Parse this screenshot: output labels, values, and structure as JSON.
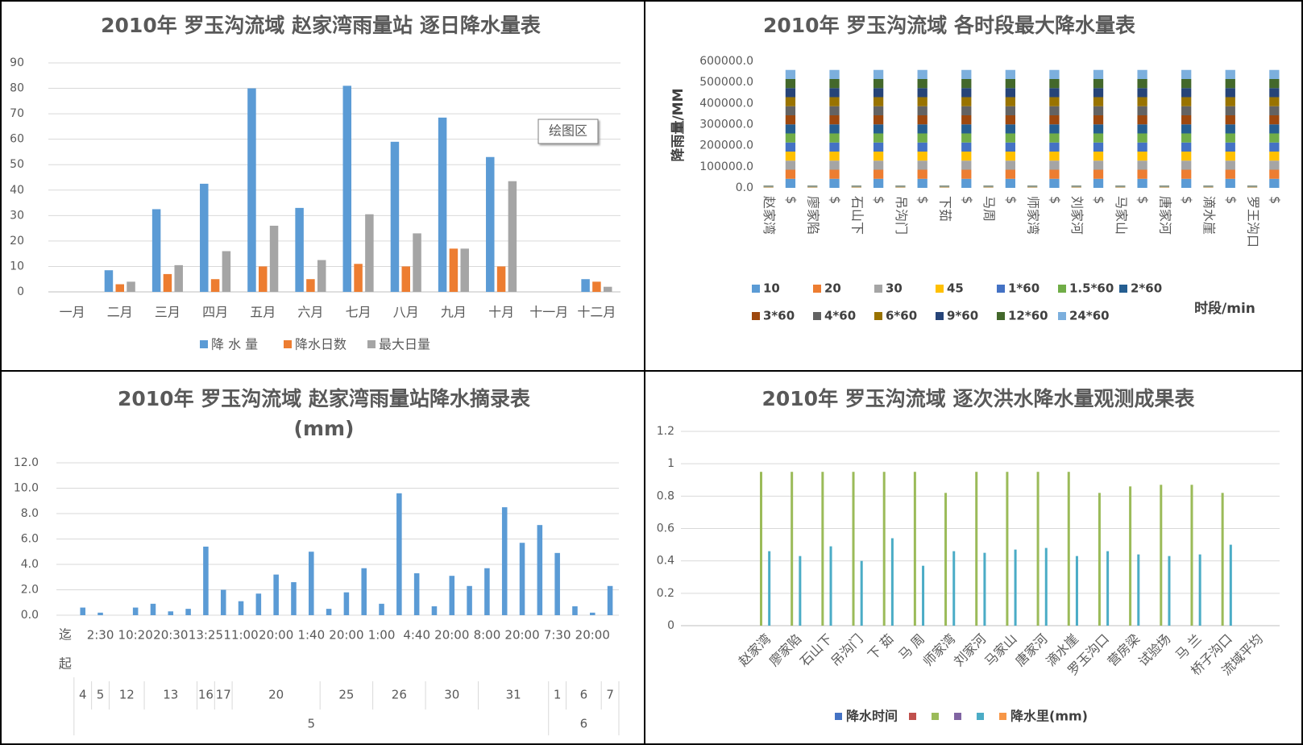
{
  "chart_data": [
    {
      "type": "bar",
      "title": "2010年 罗玉沟流域 赵家湾雨量站 逐日降水量表",
      "categories": [
        "一月",
        "二月",
        "三月",
        "四月",
        "五月",
        "六月",
        "七月",
        "八月",
        "九月",
        "十月",
        "十一月",
        "十二月"
      ],
      "series": [
        {
          "name": "降 水 量",
          "color": "#5b9bd5",
          "values": [
            0,
            8.5,
            32.5,
            42.5,
            80,
            33,
            81,
            59,
            68.5,
            53,
            0,
            5
          ]
        },
        {
          "name": "降水日数",
          "color": "#ed7d31",
          "values": [
            0,
            3,
            7,
            5,
            10,
            5,
            11,
            10,
            17,
            10,
            0,
            4
          ]
        },
        {
          "name": "最大日量",
          "color": "#a5a5a5",
          "values": [
            0,
            4,
            10.5,
            16,
            26,
            12.5,
            30.5,
            23,
            17,
            43.5,
            0,
            2
          ]
        }
      ],
      "ylim": [
        0,
        90
      ],
      "yticks": [
        0,
        10,
        20,
        30,
        40,
        50,
        60,
        70,
        80,
        90
      ],
      "grid": true,
      "legend": "bottom",
      "annotation": "绘图区"
    },
    {
      "type": "stacked_bar",
      "title": "2010年 罗玉沟流域 各时段最大降水量表",
      "y_label": "降雨量/MM",
      "x_label": "时段/min",
      "categories": [
        "赵家湾",
        "$",
        "廖家陷",
        "$",
        "石山下",
        "$",
        "吊沟门",
        "$",
        "下茹",
        "$",
        "马周",
        "$",
        "师家湾",
        "$",
        "刘家河",
        "$",
        "马家山",
        "$",
        "唐家河",
        "$",
        "滴水崖",
        "$",
        "罗王沟口",
        "$"
      ],
      "series": [
        {
          "name": "10",
          "color": "#5b9bd5",
          "values": [
            900,
            43000,
            900,
            43000,
            900,
            43000,
            900,
            43000,
            900,
            43000,
            900,
            43000,
            900,
            43000,
            900,
            43000,
            900,
            43000,
            900,
            43000,
            900,
            43000,
            900,
            43000
          ]
        },
        {
          "name": "20",
          "color": "#ed7d31",
          "values": [
            900,
            43000,
            900,
            43000,
            900,
            43000,
            900,
            43000,
            900,
            43000,
            900,
            43000,
            900,
            43000,
            900,
            43000,
            900,
            43000,
            900,
            43000,
            900,
            43000,
            900,
            43000
          ]
        },
        {
          "name": "30",
          "color": "#a5a5a5",
          "values": [
            900,
            43000,
            900,
            43000,
            900,
            43000,
            900,
            43000,
            900,
            43000,
            900,
            43000,
            900,
            43000,
            900,
            43000,
            900,
            43000,
            900,
            43000,
            900,
            43000,
            900,
            43000
          ]
        },
        {
          "name": "45",
          "color": "#ffc000",
          "values": [
            900,
            43000,
            900,
            43000,
            900,
            43000,
            900,
            43000,
            900,
            43000,
            900,
            43000,
            900,
            43000,
            900,
            43000,
            900,
            43000,
            900,
            43000,
            900,
            43000,
            900,
            43000
          ]
        },
        {
          "name": "1*60",
          "color": "#4472c4",
          "values": [
            900,
            43000,
            900,
            43000,
            900,
            43000,
            900,
            43000,
            900,
            43000,
            900,
            43000,
            900,
            43000,
            900,
            43000,
            900,
            43000,
            900,
            43000,
            900,
            43000,
            900,
            43000
          ]
        },
        {
          "name": "1.5*60",
          "color": "#70ad47",
          "values": [
            900,
            43000,
            900,
            43000,
            900,
            43000,
            900,
            43000,
            900,
            43000,
            900,
            43000,
            900,
            43000,
            900,
            43000,
            900,
            43000,
            900,
            43000,
            900,
            43000,
            900,
            43000
          ]
        },
        {
          "name": "2*60",
          "color": "#255e91",
          "values": [
            900,
            43000,
            900,
            43000,
            900,
            43000,
            900,
            43000,
            900,
            43000,
            900,
            43000,
            900,
            43000,
            900,
            43000,
            900,
            43000,
            900,
            43000,
            900,
            43000,
            900,
            43000
          ]
        },
        {
          "name": "3*60",
          "color": "#9e480e",
          "values": [
            900,
            43000,
            900,
            43000,
            900,
            43000,
            900,
            43000,
            900,
            43000,
            900,
            43000,
            900,
            43000,
            900,
            43000,
            900,
            43000,
            900,
            43000,
            900,
            43000,
            900,
            43000
          ]
        },
        {
          "name": "4*60",
          "color": "#636363",
          "values": [
            900,
            43000,
            900,
            43000,
            900,
            43000,
            900,
            43000,
            900,
            43000,
            900,
            43000,
            900,
            43000,
            900,
            43000,
            900,
            43000,
            900,
            43000,
            900,
            43000,
            900,
            43000
          ]
        },
        {
          "name": "6*60",
          "color": "#997300",
          "values": [
            900,
            43000,
            900,
            43000,
            900,
            43000,
            900,
            43000,
            900,
            43000,
            900,
            43000,
            900,
            43000,
            900,
            43000,
            900,
            43000,
            900,
            43000,
            900,
            43000,
            900,
            43000
          ]
        },
        {
          "name": "9*60",
          "color": "#264478",
          "values": [
            900,
            43000,
            900,
            43000,
            900,
            43000,
            900,
            43000,
            900,
            43000,
            900,
            43000,
            900,
            43000,
            900,
            43000,
            900,
            43000,
            900,
            43000,
            900,
            43000,
            900,
            43000
          ]
        },
        {
          "name": "12*60",
          "color": "#43682b",
          "values": [
            900,
            43000,
            900,
            43000,
            900,
            43000,
            900,
            43000,
            900,
            43000,
            900,
            43000,
            900,
            43000,
            900,
            43000,
            900,
            43000,
            900,
            43000,
            900,
            43000,
            900,
            43000
          ]
        },
        {
          "name": "24*60",
          "color": "#7cafdd",
          "values": [
            900,
            43000,
            900,
            43000,
            900,
            43000,
            900,
            43000,
            900,
            43000,
            900,
            43000,
            900,
            43000,
            900,
            43000,
            900,
            43000,
            900,
            43000,
            900,
            43000,
            900,
            43000
          ]
        }
      ],
      "ylim": [
        0,
        600000
      ],
      "yticks": [
        {
          "value": 0,
          "label": "0.0"
        },
        {
          "value": 100000,
          "label": "100000.0"
        },
        {
          "value": 200000,
          "label": "200000.0"
        },
        {
          "value": 300000,
          "label": "300000.0"
        },
        {
          "value": 400000,
          "label": "400000.0"
        },
        {
          "value": 500000,
          "label": "500000.0"
        },
        {
          "value": 600000,
          "label": "600000.0"
        }
      ],
      "grid": false,
      "legend": "bottom"
    },
    {
      "type": "bar",
      "title": "2010年 罗玉沟流域 赵家湾雨量站降水摘录表",
      "subtitle": "(mm)",
      "color": "#5b9bd5",
      "values": [
        0.6,
        0.2,
        0,
        0.6,
        0.9,
        0.3,
        0.5,
        5.4,
        2.0,
        1.1,
        1.7,
        3.2,
        2.6,
        5.0,
        0.5,
        1.8,
        3.7,
        0.9,
        9.6,
        3.3,
        0.7,
        3.1,
        2.3,
        3.7,
        8.5,
        5.7,
        7.1,
        4.9,
        0.7,
        0.2,
        2.3
      ],
      "end_times": [
        null,
        "2:30",
        null,
        "10:20",
        null,
        "20:30",
        null,
        "13:25",
        null,
        "11:00",
        null,
        "20:00",
        null,
        "1:40",
        null,
        "20:00",
        null,
        "1:00",
        null,
        "4:40",
        null,
        "20:00",
        null,
        "8:00",
        null,
        "20:00",
        null,
        "7:30",
        null,
        "20:00",
        null
      ],
      "row_labels": [
        "迄",
        "起"
      ],
      "day_groups": [
        {
          "label": 4,
          "count": 1
        },
        {
          "label": 5,
          "count": 1
        },
        {
          "label": 12,
          "count": 2
        },
        {
          "label": 13,
          "count": 3
        },
        {
          "label": 16,
          "count": 1
        },
        {
          "label": 17,
          "count": 1
        },
        {
          "label": 20,
          "count": 5
        },
        {
          "label": 25,
          "count": 3
        },
        {
          "label": 26,
          "count": 3
        },
        {
          "label": 30,
          "count": 3
        },
        {
          "label": 31,
          "count": 4
        },
        {
          "label": 1,
          "count": 1
        },
        {
          "label": 6,
          "count": 2
        },
        {
          "label": 7,
          "count": 1
        }
      ],
      "month_groups": [
        {
          "label": 5,
          "count": 27
        },
        {
          "label": 6,
          "count": 4
        }
      ],
      "ylim": [
        0,
        12
      ],
      "yticks": [
        {
          "value": 0,
          "label": "0.0"
        },
        {
          "value": 2,
          "label": "2.0"
        },
        {
          "value": 4,
          "label": "4.0"
        },
        {
          "value": 6,
          "label": "6.0"
        },
        {
          "value": 8,
          "label": "8.0"
        },
        {
          "value": 10,
          "label": "10.0"
        },
        {
          "value": 12,
          "label": "12.0"
        }
      ],
      "grid": true
    },
    {
      "type": "grouped_bar",
      "title": "2010年 罗玉沟流域 逐次洪水降水量观测成果表",
      "categories": [
        "赵家湾",
        "廖家陷",
        "石山下",
        "吊沟门",
        "下 茹",
        "马 周",
        "师家湾",
        "刘家河",
        "马家山",
        "唐家河",
        "滴水崖",
        "罗玉沟口",
        "营房梁",
        "试验场",
        "马 兰",
        "桥子沟口",
        "流域平均"
      ],
      "series": [
        {
          "name": "降水时间",
          "color": "#4472c4",
          "values": [
            null,
            null,
            null,
            null,
            null,
            null,
            null,
            null,
            null,
            null,
            null,
            null,
            null,
            null,
            null,
            null,
            null
          ]
        },
        {
          "name": null,
          "color": "#c0504d",
          "values": [
            null,
            null,
            null,
            null,
            null,
            null,
            null,
            null,
            null,
            null,
            null,
            null,
            null,
            null,
            null,
            null,
            null
          ]
        },
        {
          "name": null,
          "color": "#9bbb59",
          "values": [
            0.95,
            0.95,
            0.95,
            0.95,
            0.95,
            0.95,
            0.82,
            0.95,
            0.95,
            0.95,
            0.95,
            0.82,
            0.86,
            0.87,
            0.87,
            0.82,
            null
          ]
        },
        {
          "name": null,
          "color": "#8064a2",
          "values": [
            null,
            null,
            null,
            null,
            null,
            null,
            null,
            null,
            null,
            null,
            null,
            null,
            null,
            null,
            null,
            null,
            null
          ]
        },
        {
          "name": null,
          "color": "#4bacc6",
          "values": [
            0.46,
            0.43,
            0.49,
            0.4,
            0.54,
            0.37,
            0.46,
            0.45,
            0.47,
            0.48,
            0.43,
            0.46,
            0.44,
            0.43,
            0.44,
            0.5,
            null
          ]
        },
        {
          "name": "降水里(mm)",
          "color": "#f79646",
          "values": [
            null,
            null,
            null,
            null,
            null,
            null,
            null,
            null,
            null,
            null,
            null,
            null,
            null,
            null,
            null,
            null,
            null
          ]
        }
      ],
      "ylim": [
        0,
        1.2
      ],
      "yticks": [
        0,
        0.2,
        0.4,
        0.6,
        0.8,
        1,
        1.2
      ],
      "grid": true,
      "legend": "bottom"
    }
  ]
}
